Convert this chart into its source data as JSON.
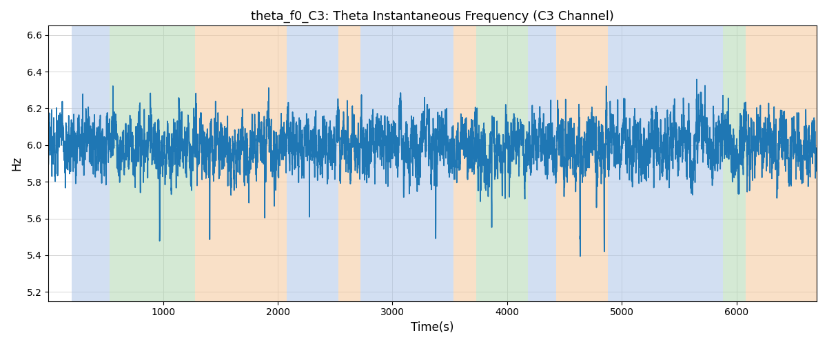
{
  "title": "theta_f0_C3: Theta Instantaneous Frequency (C3 Channel)",
  "xlabel": "Time(s)",
  "ylabel": "Hz",
  "xlim": [
    0,
    6700
  ],
  "ylim": [
    5.15,
    6.65
  ],
  "yticks": [
    5.2,
    5.4,
    5.6,
    5.8,
    6.0,
    6.2,
    6.4,
    6.6
  ],
  "xticks": [
    1000,
    2000,
    3000,
    4000,
    5000,
    6000
  ],
  "line_color": "#1f77b4",
  "line_width": 1.2,
  "bg_bands": [
    {
      "xstart": 200,
      "xend": 530,
      "color": "#aec6e8",
      "alpha": 0.55
    },
    {
      "xstart": 530,
      "xend": 1280,
      "color": "#b2d8b2",
      "alpha": 0.55
    },
    {
      "xstart": 1280,
      "xend": 2080,
      "color": "#f5c89a",
      "alpha": 0.55
    },
    {
      "xstart": 2080,
      "xend": 2530,
      "color": "#aec6e8",
      "alpha": 0.55
    },
    {
      "xstart": 2530,
      "xend": 2720,
      "color": "#f5c89a",
      "alpha": 0.55
    },
    {
      "xstart": 2720,
      "xend": 3530,
      "color": "#aec6e8",
      "alpha": 0.55
    },
    {
      "xstart": 3530,
      "xend": 3730,
      "color": "#f5c89a",
      "alpha": 0.55
    },
    {
      "xstart": 3730,
      "xend": 4180,
      "color": "#b2d8b2",
      "alpha": 0.55
    },
    {
      "xstart": 4180,
      "xend": 4430,
      "color": "#aec6e8",
      "alpha": 0.55
    },
    {
      "xstart": 4430,
      "xend": 4880,
      "color": "#f5c89a",
      "alpha": 0.55
    },
    {
      "xstart": 4880,
      "xend": 5880,
      "color": "#aec6e8",
      "alpha": 0.55
    },
    {
      "xstart": 5880,
      "xend": 6080,
      "color": "#b2d8b2",
      "alpha": 0.55
    },
    {
      "xstart": 6080,
      "xend": 6700,
      "color": "#f5c89a",
      "alpha": 0.55
    }
  ],
  "n_points": 6500,
  "mean_freq": 6.0,
  "ar_coef": 0.97,
  "noise_std": 0.13,
  "seed": 12
}
